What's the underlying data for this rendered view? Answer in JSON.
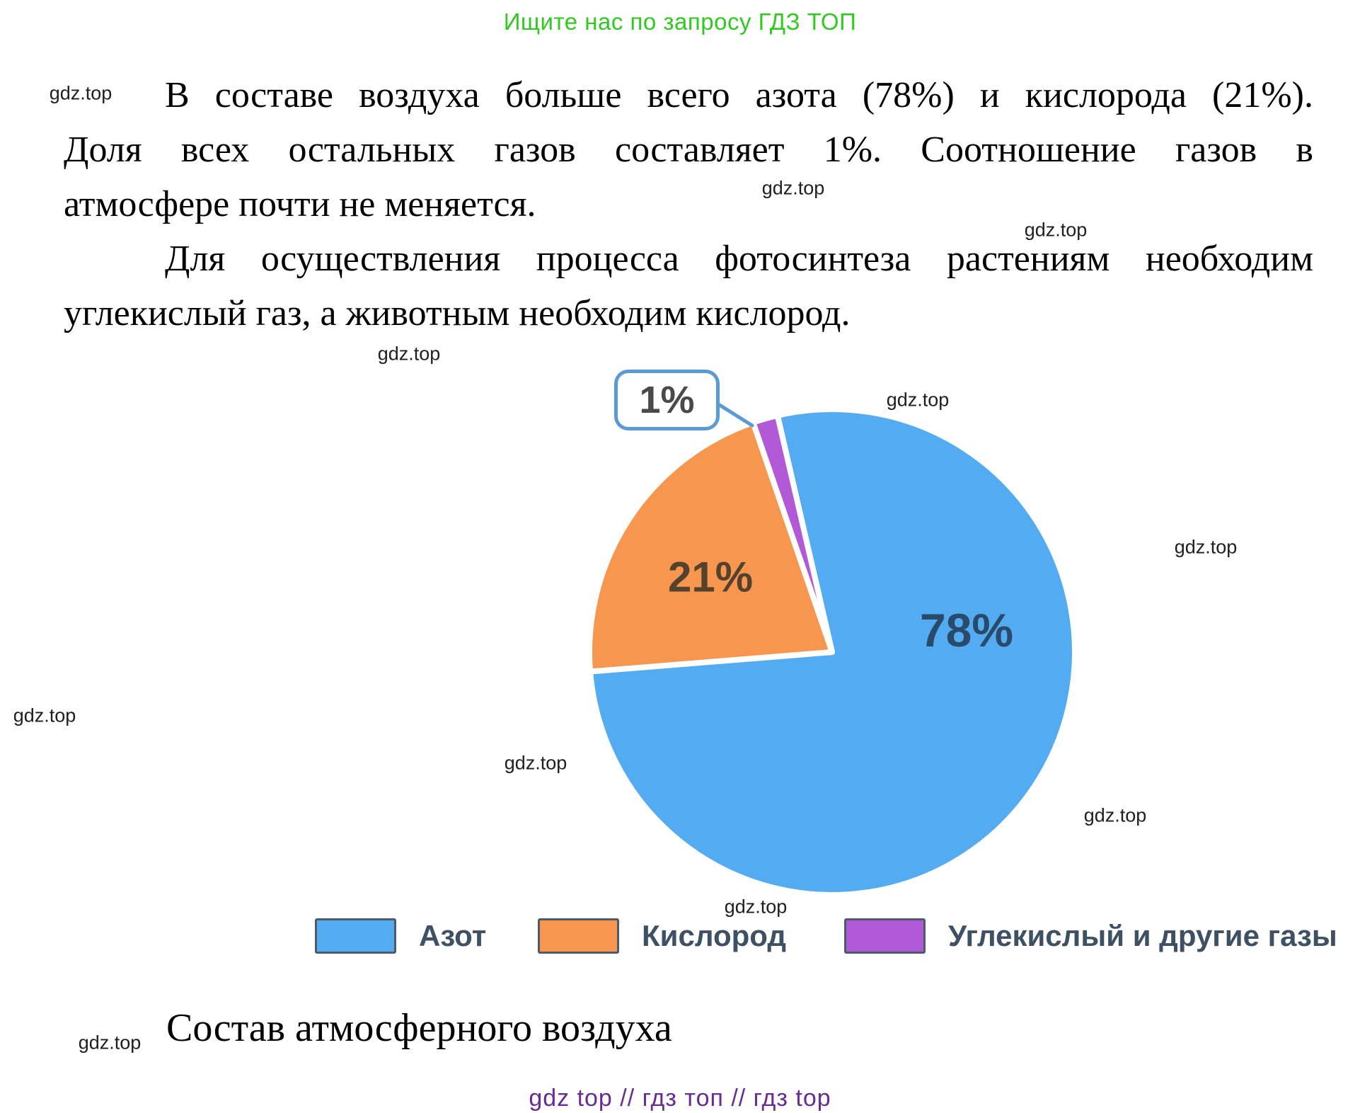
{
  "header": {
    "promo_text": "Ищите нас по запросу ГДЗ ТОП",
    "promo_color": "#2fcc1f"
  },
  "body_text": {
    "para1_line1": "В составе воздуха больше всего азота (78%) и кислорода (21%).",
    "para1_line2": "Доля всех остальных газов составляет 1%. Соотношение газов в",
    "para1_line3": "атмосфере почти не меняется.",
    "para2_line1": "Для осуществления процесса фотосинтеза растениям необходим",
    "para2_line2": "углекислый газ, а животным необходим кислород."
  },
  "watermark": {
    "label": "gdz.top"
  },
  "chart_data": {
    "type": "pie",
    "title": "Состав атмосферного воздуха",
    "categories": [
      "Азот",
      "Кислород",
      "Углекислый и другие газы"
    ],
    "values": [
      78,
      21,
      1
    ],
    "slices": [
      {
        "label": "Азот",
        "value": 78,
        "display": "78%",
        "color": "#53acf1"
      },
      {
        "label": "Кислород",
        "value": 21,
        "display": "21%",
        "color": "#f6964f"
      },
      {
        "label": "Углекислый и другие газы",
        "value": 1,
        "display": "1%",
        "color": "#b159d6"
      }
    ],
    "legend_position": "bottom",
    "callout_color": "#5b9bd5",
    "gap_color": "#ffffff"
  },
  "caption": {
    "text": "Состав атмосферного воздуха"
  },
  "footer": {
    "text": "gdz top  //  гдз топ  //  гдз top",
    "color": "#6a2c91"
  }
}
